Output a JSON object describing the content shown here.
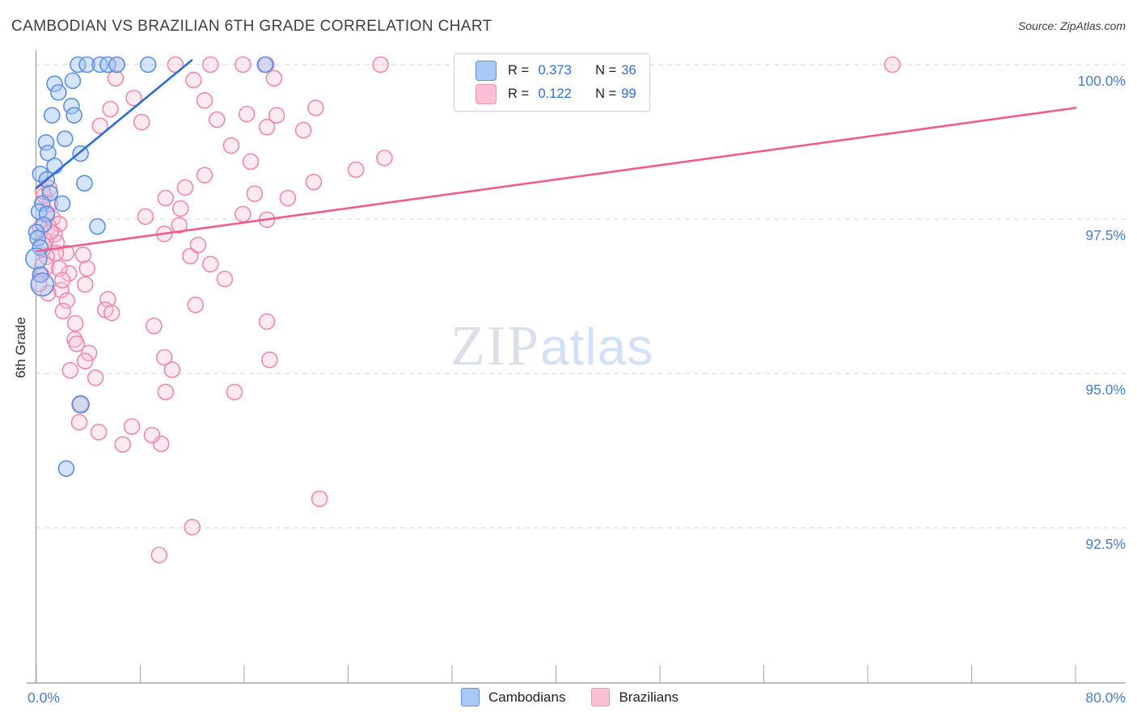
{
  "header": {
    "title": "CAMBODIAN VS BRAZILIAN 6TH GRADE CORRELATION CHART",
    "source": "Source: ZipAtlas.com"
  },
  "watermark": {
    "zip": "ZIP",
    "atlas": "atlas"
  },
  "legend_box": {
    "rows": [
      {
        "series": "Cambodians",
        "r_label": "R =",
        "r_value": "0.373",
        "n_label": "N =",
        "n_value": "36",
        "swatch_fill": "#a9c9f4",
        "swatch_stroke": "#5f93d8"
      },
      {
        "series": "Brazilians",
        "r_label": "R =",
        "r_value": "0.122",
        "n_label": "N =",
        "n_value": "99",
        "swatch_fill": "#f9c0d5",
        "swatch_stroke": "#ef93b4"
      }
    ]
  },
  "axes": {
    "y_title": "6th Grade",
    "y_gridlines": [
      {
        "value": 100.0,
        "label": "100.0%"
      },
      {
        "value": 97.5,
        "label": "97.5%"
      },
      {
        "value": 95.0,
        "label": "95.0%"
      },
      {
        "value": 92.5,
        "label": "92.5%"
      }
    ],
    "x_ticks": [
      0,
      8,
      16,
      24,
      32,
      40,
      48,
      56,
      64,
      72,
      80
    ],
    "x_left_label": "0.0%",
    "x_right_label": "80.0%"
  },
  "bottom_legend": [
    {
      "label": "Cambodians",
      "swatch_fill": "#a9c9f4",
      "swatch_stroke": "#5f93d8"
    },
    {
      "label": "Brazilians",
      "swatch_fill": "#f9c0d5",
      "swatch_stroke": "#ef93b4"
    }
  ],
  "colors": {
    "grid": "#d6d6d6",
    "axis": "#a6a6a6",
    "tick": "#a6a6a6",
    "axis_label_blue": "#4a7dc9",
    "blue_line": "#2e6bd4",
    "pink_line": "#ed5d8d"
  },
  "chart_data": {
    "type": "scatter",
    "title": "CAMBODIAN VS BRAZILIAN 6TH GRADE CORRELATION CHART",
    "xlabel": "",
    "ylabel": "6th Grade",
    "xlim": [
      0,
      80
    ],
    "ylim": [
      90,
      100.4
    ],
    "x_unit": "%",
    "y_unit": "%",
    "grid": "horizontal-dashed",
    "legend_position": "bottom-center",
    "series": [
      {
        "name": "Cambodians",
        "R": 0.373,
        "N": 36,
        "fill": "rgba(160,196,245,0.45)",
        "stroke": "#5c8fe0",
        "points": [
          [
            3.2,
            100.0
          ],
          [
            3.9,
            100.0
          ],
          [
            4.9,
            100.0
          ],
          [
            5.5,
            100.0
          ],
          [
            6.2,
            100.0
          ],
          [
            8.6,
            100.0
          ],
          [
            17.6,
            100.0
          ],
          [
            1.4,
            99.69
          ],
          [
            2.8,
            99.74
          ],
          [
            1.7,
            99.55
          ],
          [
            2.7,
            99.33
          ],
          [
            1.2,
            99.18
          ],
          [
            2.9,
            99.18
          ],
          [
            0.75,
            98.74
          ],
          [
            2.2,
            98.8
          ],
          [
            0.9,
            98.57
          ],
          [
            3.4,
            98.56
          ],
          [
            1.4,
            98.36
          ],
          [
            0.3,
            98.23
          ],
          [
            0.8,
            98.14
          ],
          [
            3.7,
            98.08
          ],
          [
            1.05,
            97.92
          ],
          [
            2.0,
            97.75
          ],
          [
            0.45,
            97.75
          ],
          [
            0.2,
            97.62
          ],
          [
            0.8,
            97.58
          ],
          [
            0.55,
            97.41
          ],
          [
            4.7,
            97.38
          ],
          [
            0.0,
            97.29
          ],
          [
            0.1,
            97.19
          ],
          [
            0.3,
            97.04
          ],
          [
            0.0,
            96.86,
            13
          ],
          [
            0.3,
            96.6
          ],
          [
            0.45,
            96.44,
            14
          ],
          [
            3.4,
            94.5,
            10.5
          ],
          [
            2.3,
            93.46
          ]
        ]
      },
      {
        "name": "Brazilians",
        "R": 0.122,
        "N": 99,
        "fill": "rgba(250,196,216,0.38)",
        "stroke": "#ef88ae",
        "points": [
          [
            6.2,
            100.0
          ],
          [
            10.7,
            100.0
          ],
          [
            13.4,
            100.0
          ],
          [
            15.9,
            100.0
          ],
          [
            17.7,
            100.0
          ],
          [
            26.5,
            100.0
          ],
          [
            65.9,
            100.0
          ],
          [
            6.1,
            99.78
          ],
          [
            7.5,
            99.46
          ],
          [
            5.7,
            99.28
          ],
          [
            8.1,
            99.07
          ],
          [
            4.9,
            99.01
          ],
          [
            12.1,
            99.75
          ],
          [
            12.95,
            99.42
          ],
          [
            18.3,
            99.78
          ],
          [
            13.9,
            99.11
          ],
          [
            16.2,
            99.2
          ],
          [
            17.75,
            98.99
          ],
          [
            18.5,
            99.18
          ],
          [
            20.55,
            98.94
          ],
          [
            21.5,
            99.3
          ],
          [
            15.0,
            98.69
          ],
          [
            16.5,
            98.43
          ],
          [
            12.95,
            98.21
          ],
          [
            11.45,
            98.01
          ],
          [
            9.95,
            97.84
          ],
          [
            11.1,
            97.67
          ],
          [
            19.35,
            97.84
          ],
          [
            21.35,
            98.1
          ],
          [
            24.6,
            98.3
          ],
          [
            26.8,
            98.49
          ],
          [
            15.9,
            97.58
          ],
          [
            17.75,
            97.49
          ],
          [
            0.6,
            97.88
          ],
          [
            1.05,
            97.75
          ],
          [
            0.8,
            97.6
          ],
          [
            1.25,
            97.51
          ],
          [
            1.75,
            97.42
          ],
          [
            0.95,
            97.38
          ],
          [
            1.4,
            97.25
          ],
          [
            1.55,
            97.12
          ],
          [
            2.3,
            96.95
          ],
          [
            0.5,
            97.95
          ],
          [
            0.3,
            97.35
          ],
          [
            0.7,
            97.15
          ],
          [
            1.5,
            96.95
          ],
          [
            0.4,
            96.6
          ],
          [
            1.9,
            96.35
          ],
          [
            2.5,
            96.62
          ],
          [
            1.1,
            97.3
          ],
          [
            1.0,
            98.0
          ],
          [
            0.9,
            96.3
          ],
          [
            0.2,
            96.45
          ],
          [
            0.45,
            97.05,
            12
          ],
          [
            0.8,
            96.89
          ],
          [
            0.6,
            96.73,
            12
          ],
          [
            1.75,
            96.7
          ],
          [
            2.0,
            96.51
          ],
          [
            3.6,
            96.92
          ],
          [
            3.9,
            96.7
          ],
          [
            3.75,
            96.44
          ],
          [
            2.35,
            96.18
          ],
          [
            2.05,
            96.01
          ],
          [
            5.5,
            96.2
          ],
          [
            5.3,
            96.03
          ],
          [
            5.8,
            95.98
          ],
          [
            3.0,
            95.81
          ],
          [
            2.95,
            95.55
          ],
          [
            3.1,
            95.48
          ],
          [
            4.05,
            95.33
          ],
          [
            3.75,
            95.2
          ],
          [
            2.6,
            95.05
          ],
          [
            4.55,
            94.93
          ],
          [
            9.05,
            95.77
          ],
          [
            11.85,
            96.9
          ],
          [
            13.4,
            96.77
          ],
          [
            14.5,
            96.53
          ],
          [
            12.25,
            96.11
          ],
          [
            17.75,
            95.84
          ],
          [
            9.85,
            95.26
          ],
          [
            10.45,
            95.06
          ],
          [
            17.95,
            95.22
          ],
          [
            9.95,
            94.7
          ],
          [
            3.3,
            94.21
          ],
          [
            4.8,
            94.05
          ],
          [
            7.35,
            94.14
          ],
          [
            6.65,
            93.85
          ],
          [
            9.6,
            93.86
          ],
          [
            8.9,
            94.0
          ],
          [
            15.25,
            94.7
          ],
          [
            8.4,
            97.54
          ],
          [
            9.85,
            97.26
          ],
          [
            11.0,
            97.4
          ],
          [
            12.45,
            97.08
          ],
          [
            16.8,
            97.91
          ],
          [
            3.4,
            94.5
          ],
          [
            21.8,
            92.97
          ],
          [
            12.0,
            92.51
          ],
          [
            9.45,
            92.06
          ]
        ]
      }
    ],
    "trendlines": [
      {
        "series": "Cambodians",
        "x1": 0,
        "y1": 98.0,
        "x2": 11.95,
        "y2": 100.07,
        "color": "#2e6bd4"
      },
      {
        "series": "Brazilians",
        "x1": 0,
        "y1": 96.98,
        "x2": 80,
        "y2": 99.3,
        "color": "#ed5d8d"
      }
    ]
  }
}
